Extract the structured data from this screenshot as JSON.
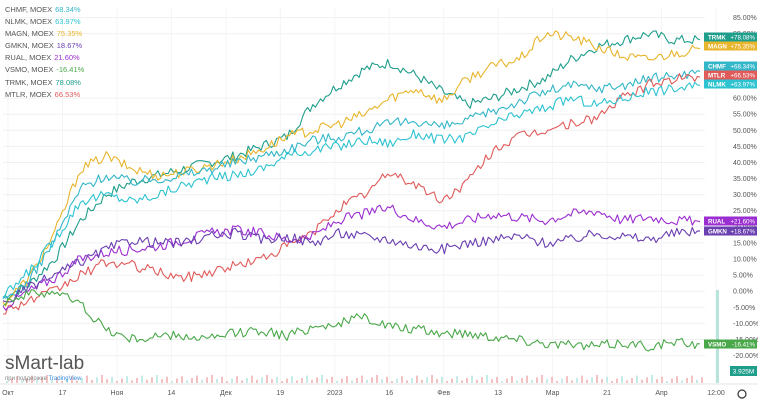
{
  "legend": [
    {
      "symbol": "CHMF",
      "exchange": "MOEX",
      "value": "68.34%",
      "color": "#33b6c8"
    },
    {
      "symbol": "NLMK",
      "exchange": "MOEX",
      "value": "63.97%",
      "color": "#2dc3d1"
    },
    {
      "symbol": "MAGN",
      "exchange": "MOEX",
      "value": "75.35%",
      "color": "#e8b52c"
    },
    {
      "symbol": "GMKN",
      "exchange": "MOEX",
      "value": "18.67%",
      "color": "#6a3fb0"
    },
    {
      "symbol": "RUAL",
      "exchange": "MOEX",
      "value": "21.60%",
      "color": "#9b2ed0"
    },
    {
      "symbol": "VSMO",
      "exchange": "MOEX",
      "value": "-16.41%",
      "color": "#4aa84a"
    },
    {
      "symbol": "TRMK",
      "exchange": "MOEX",
      "value": "78.08%",
      "color": "#1f9e8c"
    },
    {
      "symbol": "MTLR",
      "exchange": "MOEX",
      "value": "66.53%",
      "color": "#e05a5a"
    }
  ],
  "watermark": {
    "brand": "sMart-lab",
    "sub_prefix": "при поддержке",
    "sub_link": "TradingView"
  },
  "chart_data": {
    "type": "line",
    "x_tick_labels": [
      "Окт",
      "17",
      "Ноя",
      "14",
      "Дек",
      "19",
      "2023",
      "16",
      "Фев",
      "13",
      "Мар",
      "21",
      "Апр",
      "12:00"
    ],
    "y_tick_labels": [
      "85.00%",
      "80.00%",
      "60.00%",
      "55.00%",
      "50.00%",
      "45.00%",
      "40.00%",
      "35.00%",
      "30.00%",
      "25.00%",
      "20.00%",
      "15.00%",
      "10.00%",
      "5.00%",
      "0.00%",
      "-5.00%",
      "-10.00%",
      "-15.00%",
      "-20.00%"
    ],
    "ylim": [
      -22,
      88
    ],
    "volume_label": "3.925M",
    "series": [
      {
        "name": "TRMK",
        "color": "#1f9e8c",
        "last_label": "+78.08%",
        "values": [
          -2,
          2,
          10,
          22,
          30,
          34,
          36,
          38,
          40,
          42,
          45,
          48,
          58,
          64,
          69,
          71,
          67,
          62,
          58,
          60,
          63,
          66,
          72,
          76,
          78,
          80,
          78,
          78.08
        ]
      },
      {
        "name": "MAGN",
        "color": "#e8b52c",
        "last_label": "+75.35%",
        "values": [
          -4,
          4,
          18,
          38,
          42,
          38,
          36,
          37,
          39,
          41,
          44,
          48,
          50,
          52,
          55,
          60,
          63,
          59,
          66,
          70,
          72,
          80,
          79,
          76,
          73,
          72,
          74,
          75.35
        ]
      },
      {
        "name": "CHMF",
        "color": "#33b6c8",
        "last_label": "+68.34%",
        "values": [
          -3,
          3,
          16,
          32,
          36,
          34,
          35,
          36,
          38,
          40,
          42,
          44,
          47,
          48,
          50,
          52,
          53,
          51,
          53,
          56,
          59,
          62,
          64,
          63,
          64,
          66,
          67,
          68.34
        ]
      },
      {
        "name": "MTLR",
        "color": "#e05a5a",
        "last_label": "+66.53%",
        "values": [
          -6,
          -3,
          0,
          5,
          9,
          8,
          6,
          4,
          6,
          8,
          10,
          14,
          18,
          26,
          30,
          37,
          33,
          28,
          34,
          44,
          48,
          50,
          52,
          54,
          60,
          64,
          66,
          66.53
        ]
      },
      {
        "name": "NLMK",
        "color": "#2dc3d1",
        "last_label": "+63.97%",
        "values": [
          -2,
          6,
          16,
          28,
          30,
          28,
          30,
          33,
          35,
          36,
          38,
          42,
          44,
          45,
          47,
          46,
          49,
          47,
          48,
          52,
          55,
          57,
          60,
          58,
          60,
          62,
          63,
          63.97
        ]
      },
      {
        "name": "RUAL",
        "color": "#9b2ed0",
        "last_label": "+21.60%",
        "values": [
          -5,
          0,
          4,
          10,
          12,
          13,
          14,
          16,
          18,
          19,
          18,
          16,
          17,
          22,
          24,
          26,
          22,
          20,
          22,
          24,
          23,
          22,
          24,
          25,
          22,
          23,
          22,
          21.6
        ]
      },
      {
        "name": "GMKN",
        "color": "#6a3fb0",
        "last_label": "+18.67%",
        "values": [
          -4,
          1,
          5,
          9,
          13,
          16,
          15,
          15,
          17,
          18,
          16,
          17,
          15,
          18,
          17,
          16,
          14,
          13,
          15,
          16,
          17,
          15,
          16,
          18,
          17,
          16,
          18,
          18.67
        ]
      },
      {
        "name": "VSMO",
        "color": "#4aa84a",
        "last_label": "-16.41%",
        "values": [
          -3,
          -1,
          0,
          -4,
          -12,
          -15,
          -14,
          -14,
          -15,
          -13,
          -12,
          -14,
          -11,
          -10,
          -8,
          -11,
          -12,
          -13,
          -13,
          -14,
          -15,
          -16,
          -17,
          -17,
          -16,
          -17,
          -16,
          -16.41
        ]
      }
    ]
  }
}
